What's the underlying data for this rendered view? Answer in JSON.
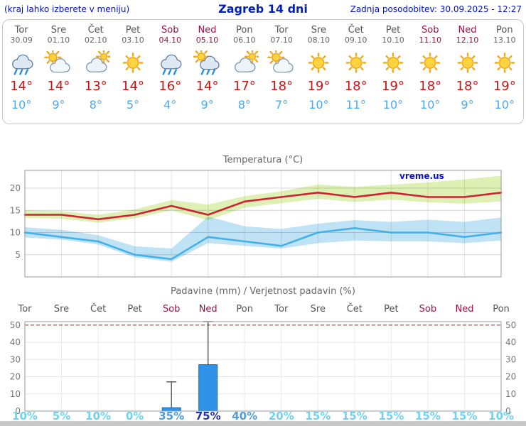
{
  "header": {
    "left_note": "(kraj lahko izberete v meniju)",
    "title": "Zagreb 14 dni",
    "updated": "Zadnja posodobitev: 30.09.2025 - 12:27"
  },
  "colors": {
    "header_blue": "#0011cc",
    "weekday_text": "#555555",
    "weekend_text": "#a01040",
    "tmax_red": "#cc1111",
    "tmin_blue": "#4aa8f5",
    "temp_max_line": "#cc2233",
    "temp_min_line": "#44b0e8",
    "band_max": "#dff0b4",
    "band_min": "#bfe3f5",
    "bar_fill": "#2f94e8",
    "bar_stroke": "#1b6bb0",
    "prob_light": "#6fd2ef",
    "prob_mid": "#4e9bd8",
    "prob_strong": "#2233aa",
    "limit_line_red": "#e05555",
    "watermark_blue": "#1111cc"
  },
  "days": [
    {
      "name": "Tor",
      "date": "30.09",
      "weekend": false,
      "icon": "rain",
      "tmax": "14°",
      "tmin": "10°"
    },
    {
      "name": "Sre",
      "date": "01.10",
      "weekend": false,
      "icon": "partly",
      "tmax": "14°",
      "tmin": "9°"
    },
    {
      "name": "Čet",
      "date": "02.10",
      "weekend": false,
      "icon": "cloudy",
      "tmax": "13°",
      "tmin": "8°"
    },
    {
      "name": "Pet",
      "date": "03.10",
      "weekend": false,
      "icon": "sun",
      "tmax": "14°",
      "tmin": "5°"
    },
    {
      "name": "Sob",
      "date": "04.10",
      "weekend": true,
      "icon": "rain",
      "tmax": "16°",
      "tmin": "4°"
    },
    {
      "name": "Ned",
      "date": "05.10",
      "weekend": true,
      "icon": "rain-sun",
      "tmax": "14°",
      "tmin": "9°"
    },
    {
      "name": "Pon",
      "date": "06.10",
      "weekend": false,
      "icon": "cloudy",
      "tmax": "17°",
      "tmin": "8°"
    },
    {
      "name": "Tor",
      "date": "07.10",
      "weekend": false,
      "icon": "partly",
      "tmax": "18°",
      "tmin": "7°"
    },
    {
      "name": "Sre",
      "date": "08.10",
      "weekend": false,
      "icon": "sun",
      "tmax": "19°",
      "tmin": "10°"
    },
    {
      "name": "Čet",
      "date": "09.10",
      "weekend": false,
      "icon": "sun",
      "tmax": "18°",
      "tmin": "11°"
    },
    {
      "name": "Pet",
      "date": "10.10",
      "weekend": false,
      "icon": "sun",
      "tmax": "19°",
      "tmin": "10°"
    },
    {
      "name": "Sob",
      "date": "11.10",
      "weekend": true,
      "icon": "sun",
      "tmax": "18°",
      "tmin": "10°"
    },
    {
      "name": "Ned",
      "date": "12.10",
      "weekend": true,
      "icon": "sun",
      "tmax": "18°",
      "tmin": "9°"
    },
    {
      "name": "Pon",
      "date": "13.10",
      "weekend": false,
      "icon": "sun",
      "tmax": "19°",
      "tmin": "10°"
    }
  ],
  "chart_data": [
    {
      "type": "line",
      "title": "Temperatura (°C)",
      "x_labels": [
        "Tor",
        "Sre",
        "Čet",
        "Pet",
        "Sob",
        "Ned",
        "Pon",
        "Tor",
        "Sre",
        "Čet",
        "Pet",
        "Sob",
        "Ned",
        "Pon"
      ],
      "ylim": [
        0,
        24
      ],
      "yticks": [
        5,
        10,
        15,
        20
      ],
      "grid": true,
      "legend_position": "none",
      "watermark": "vreme.us",
      "series": [
        {
          "name": "tmax",
          "color": "#cc2233",
          "values": [
            14,
            14,
            13,
            14,
            16,
            14,
            17,
            18,
            19,
            18,
            19,
            18,
            18,
            19
          ]
        },
        {
          "name": "tmin",
          "color": "#44b0e8",
          "values": [
            10,
            9,
            8,
            5,
            4,
            9,
            8,
            7,
            10,
            11,
            10,
            10,
            9,
            10
          ]
        }
      ],
      "bands": [
        {
          "name": "tmax-range",
          "color": "#dff0b4",
          "upper": [
            15.0,
            14.8,
            14.0,
            15.2,
            17.3,
            16.3,
            18.2,
            19.3,
            20.8,
            20.3,
            20.8,
            21.3,
            22.0,
            22.8
          ],
          "lower": [
            13.3,
            13.1,
            12.2,
            13.2,
            15.0,
            12.8,
            15.6,
            16.6,
            17.6,
            16.9,
            17.4,
            16.8,
            16.5,
            17.0
          ]
        },
        {
          "name": "tmin-range",
          "color": "#bfe3f5",
          "upper": [
            11.2,
            10.6,
            9.4,
            6.9,
            6.4,
            13.6,
            11.4,
            10.8,
            12.0,
            12.8,
            12.4,
            12.9,
            12.4,
            13.4
          ],
          "lower": [
            8.9,
            8.4,
            7.3,
            4.4,
            3.4,
            7.6,
            7.0,
            6.4,
            7.6,
            8.2,
            8.0,
            8.0,
            7.6,
            8.2
          ]
        }
      ]
    },
    {
      "type": "bar",
      "title": "Padavine (mm) / Verjetnost padavin (%)",
      "x_labels": [
        "Tor",
        "Sre",
        "Čet",
        "Pet",
        "Sob",
        "Ned",
        "Pon",
        "Tor",
        "Sre",
        "Čet",
        "Pet",
        "Sob",
        "Ned",
        "Pon"
      ],
      "weekend_flags": [
        false,
        false,
        false,
        false,
        true,
        true,
        false,
        false,
        false,
        false,
        false,
        true,
        true,
        false
      ],
      "ylim": [
        0,
        52
      ],
      "yticks": [
        0,
        10,
        20,
        30,
        40,
        50
      ],
      "limit_line": 50,
      "values_mm": [
        0,
        0,
        0,
        0,
        2,
        27,
        0,
        0,
        0,
        0,
        0,
        0,
        0,
        0
      ],
      "whiskers_mm": [
        0,
        0,
        0,
        0,
        17,
        52,
        0,
        0,
        0,
        0,
        0,
        0,
        0,
        0
      ],
      "probabilities": [
        "10%",
        "5%",
        "10%",
        "0%",
        "35%",
        "75%",
        "40%",
        "20%",
        "15%",
        "15%",
        "15%",
        "15%",
        "15%",
        "10%"
      ]
    }
  ]
}
